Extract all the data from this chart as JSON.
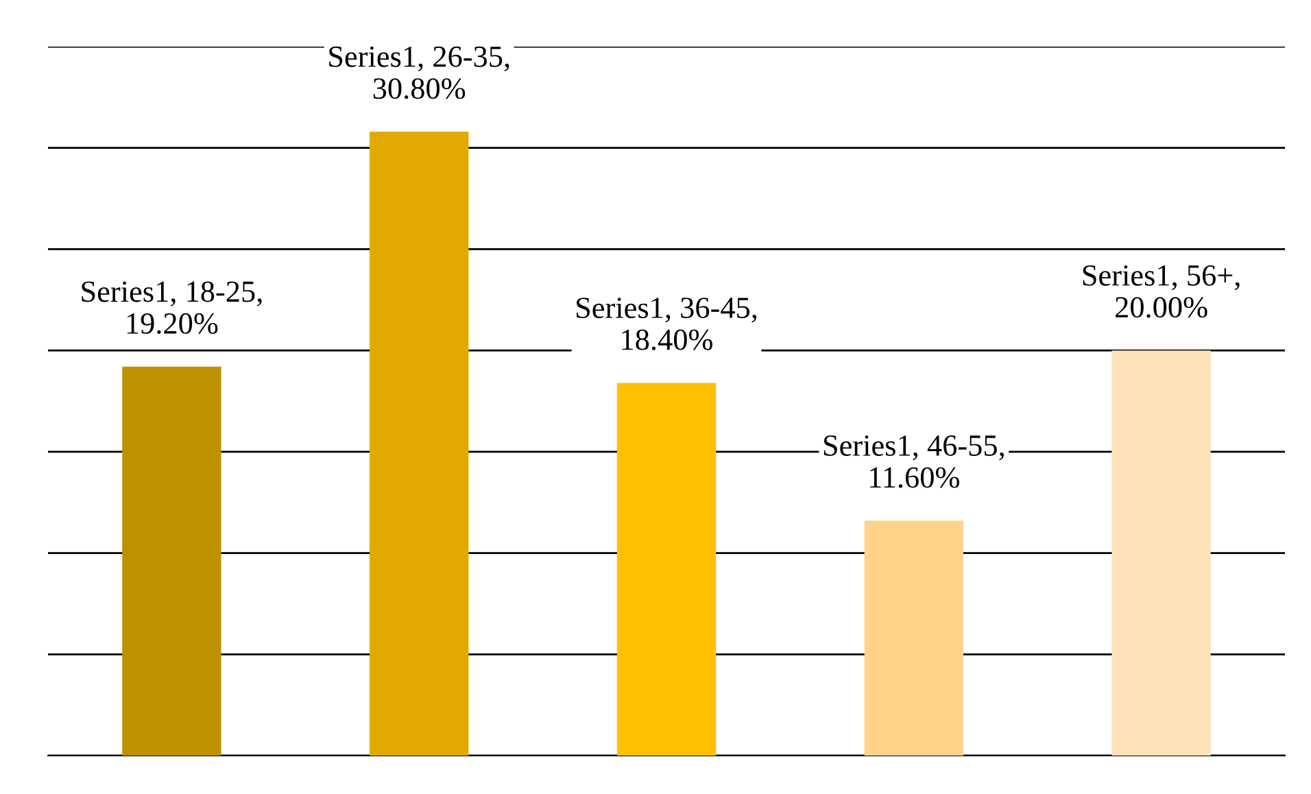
{
  "chart_data": {
    "type": "bar",
    "categories": [
      null,
      null,
      null,
      null,
      null
    ],
    "values": [
      19.2,
      30.8,
      18.4,
      11.6,
      20.0
    ],
    "colors": [
      "#bf9000",
      "#e2aa00",
      "#ffc000",
      "#ffd38a",
      "#ffe2b8"
    ],
    "value_labels": [
      "Series1, 18-25,\n19.20%",
      "Series1, 26-35,\n30.80%",
      "Series1, 36-45,\n18.40%",
      "Series1, 46-55,\n11.60%",
      "Series1, 56+,\n20.00%"
    ],
    "ylim": [
      0,
      35
    ],
    "yticks": [
      {
        "value": 0,
        "label": null
      },
      {
        "value": 5,
        "label": null
      },
      {
        "value": 10,
        "label": null
      },
      {
        "value": 15,
        "label": null
      },
      {
        "value": 20,
        "label": null
      },
      {
        "value": 25,
        "label": null
      },
      {
        "value": 30,
        "label": null
      },
      {
        "value": 35,
        "label": null
      }
    ],
    "grid": "y"
  }
}
